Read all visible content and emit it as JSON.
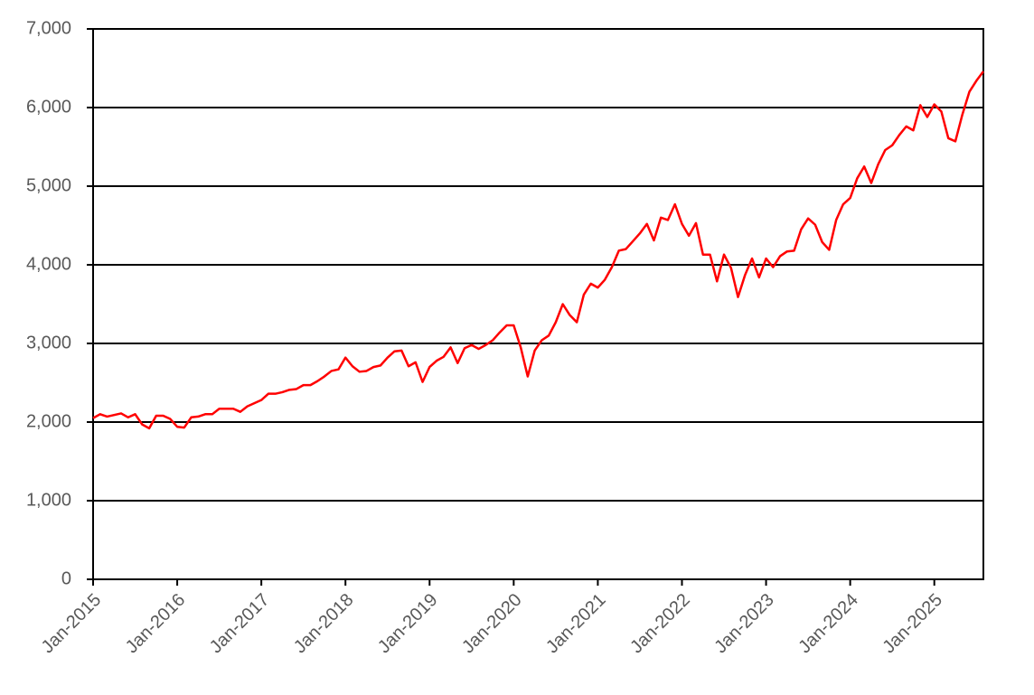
{
  "chart_data": {
    "type": "line",
    "x": [
      "2015-01",
      "2015-02",
      "2015-03",
      "2015-04",
      "2015-05",
      "2015-06",
      "2015-07",
      "2015-08",
      "2015-09",
      "2015-10",
      "2015-11",
      "2015-12",
      "2016-01",
      "2016-02",
      "2016-03",
      "2016-04",
      "2016-05",
      "2016-06",
      "2016-07",
      "2016-08",
      "2016-09",
      "2016-10",
      "2016-11",
      "2016-12",
      "2017-01",
      "2017-02",
      "2017-03",
      "2017-04",
      "2017-05",
      "2017-06",
      "2017-07",
      "2017-08",
      "2017-09",
      "2017-10",
      "2017-11",
      "2017-12",
      "2018-01",
      "2018-02",
      "2018-03",
      "2018-04",
      "2018-05",
      "2018-06",
      "2018-07",
      "2018-08",
      "2018-09",
      "2018-10",
      "2018-11",
      "2018-12",
      "2019-01",
      "2019-02",
      "2019-03",
      "2019-04",
      "2019-05",
      "2019-06",
      "2019-07",
      "2019-08",
      "2019-09",
      "2019-10",
      "2019-11",
      "2019-12",
      "2020-01",
      "2020-02",
      "2020-03",
      "2020-04",
      "2020-05",
      "2020-06",
      "2020-07",
      "2020-08",
      "2020-09",
      "2020-10",
      "2020-11",
      "2020-12",
      "2021-01",
      "2021-02",
      "2021-03",
      "2021-04",
      "2021-05",
      "2021-06",
      "2021-07",
      "2021-08",
      "2021-09",
      "2021-10",
      "2021-11",
      "2021-12",
      "2022-01",
      "2022-02",
      "2022-03",
      "2022-04",
      "2022-05",
      "2022-06",
      "2022-07",
      "2022-08",
      "2022-09",
      "2022-10",
      "2022-11",
      "2022-12",
      "2023-01",
      "2023-02",
      "2023-03",
      "2023-04",
      "2023-05",
      "2023-06",
      "2023-07",
      "2023-08",
      "2023-09",
      "2023-10",
      "2023-11",
      "2023-12",
      "2024-01",
      "2024-02",
      "2024-03",
      "2024-04",
      "2024-05",
      "2024-06",
      "2024-07",
      "2024-08",
      "2024-09",
      "2024-10",
      "2024-11",
      "2024-12",
      "2025-01",
      "2025-02",
      "2025-03",
      "2025-04",
      "2025-05",
      "2025-06",
      "2025-07",
      "2025-08"
    ],
    "values": [
      2050,
      2100,
      2070,
      2090,
      2110,
      2060,
      2100,
      1970,
      1920,
      2080,
      2080,
      2040,
      1940,
      1930,
      2060,
      2070,
      2100,
      2100,
      2170,
      2170,
      2170,
      2130,
      2200,
      2240,
      2280,
      2360,
      2360,
      2380,
      2410,
      2420,
      2470,
      2470,
      2520,
      2580,
      2650,
      2670,
      2820,
      2710,
      2640,
      2650,
      2700,
      2720,
      2820,
      2900,
      2910,
      2710,
      2760,
      2510,
      2700,
      2780,
      2830,
      2950,
      2750,
      2940,
      2980,
      2930,
      2980,
      3040,
      3140,
      3230,
      3230,
      2950,
      2580,
      2910,
      3040,
      3100,
      3270,
      3500,
      3360,
      3270,
      3620,
      3760,
      3710,
      3810,
      3970,
      4180,
      4200,
      4300,
      4400,
      4520,
      4310,
      4600,
      4570,
      4770,
      4520,
      4370,
      4530,
      4130,
      4130,
      3790,
      4130,
      3960,
      3590,
      3870,
      4080,
      3840,
      4080,
      3970,
      4110,
      4170,
      4180,
      4450,
      4590,
      4510,
      4290,
      4190,
      4570,
      4770,
      4850,
      5100,
      5250,
      5040,
      5280,
      5460,
      5520,
      5650,
      5760,
      5710,
      6030,
      5880,
      6040,
      5950,
      5610,
      5570,
      5910,
      6200,
      6340,
      6460
    ],
    "color": "#ff0000",
    "xlim": [
      "2015-01",
      "2025-08"
    ],
    "xticks": [
      {
        "value": "2015-01",
        "label": "Jan-2015"
      },
      {
        "value": "2016-01",
        "label": "Jan-2016"
      },
      {
        "value": "2017-01",
        "label": "Jan-2017"
      },
      {
        "value": "2018-01",
        "label": "Jan-2018"
      },
      {
        "value": "2019-01",
        "label": "Jan-2019"
      },
      {
        "value": "2020-01",
        "label": "Jan-2020"
      },
      {
        "value": "2021-01",
        "label": "Jan-2021"
      },
      {
        "value": "2022-01",
        "label": "Jan-2022"
      },
      {
        "value": "2023-01",
        "label": "Jan-2023"
      },
      {
        "value": "2024-01",
        "label": "Jan-2024"
      },
      {
        "value": "2025-01",
        "label": "Jan-2025"
      }
    ],
    "ylim": [
      0,
      7000
    ],
    "yticks": [
      0,
      {
        "value": 1000,
        "label": "1,000"
      },
      {
        "value": 2000,
        "label": "2,000"
      },
      {
        "value": 3000,
        "label": "3,000"
      },
      {
        "value": 4000,
        "label": "4,000"
      },
      {
        "value": 5000,
        "label": "5,000"
      },
      {
        "value": 6000,
        "label": "6,000"
      },
      {
        "value": 7000,
        "label": "7,000"
      }
    ],
    "grid": true
  }
}
